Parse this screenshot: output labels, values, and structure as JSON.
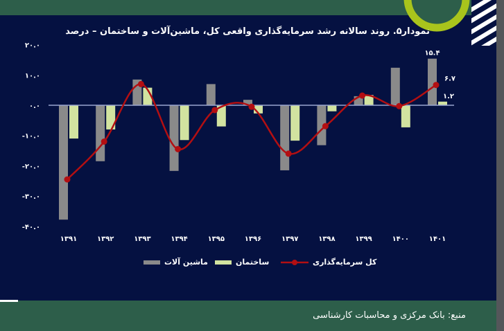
{
  "chart_title": "نمودار۵. روند سالانه رشد سرمایه‌گذاری واقعی کل، ماشین‌آلات و ساختمان – درصد",
  "source_text": "منبع: بانک مرکزی و محاسبات کارشناسی",
  "colors": {
    "background": "#051141",
    "band": "#2d5e4a",
    "machinery": "#8a8a8a",
    "construction": "#d2e3a0",
    "total": "#b30f12",
    "zero_line": "#9aa6d0",
    "accent_ring": "#a9c41c"
  },
  "legend": {
    "total": "کل سرمایه‌گذاری",
    "construction": "ساختمان",
    "machinery": "ماشین آلات"
  },
  "y_ticks": [
    {
      "value": 20,
      "label": "۲۰.۰"
    },
    {
      "value": 10,
      "label": "۱۰.۰"
    },
    {
      "value": 0,
      "label": "۰.۰"
    },
    {
      "value": -10,
      "label": "-۱۰.۰"
    },
    {
      "value": -20,
      "label": "-۲۰.۰"
    },
    {
      "value": -30,
      "label": "-۳۰.۰"
    },
    {
      "value": -40,
      "label": "-۴۰.۰"
    }
  ],
  "annotations": [
    {
      "series": "machinery",
      "category": "۱۴۰۱",
      "label": "۱۵.۴"
    },
    {
      "series": "total",
      "category": "۱۴۰۱",
      "label": "۶.۷"
    },
    {
      "series": "construction",
      "category": "۱۴۰۱",
      "label": "۱.۲"
    }
  ],
  "chart_data": {
    "type": "bar",
    "title": "نمودار۵. روند سالانه رشد سرمایه‌گذاری واقعی کل، ماشین‌آلات و ساختمان – درصد",
    "xlabel": "",
    "ylabel": "درصد",
    "ylim": [
      -40,
      20
    ],
    "grid": false,
    "legend_position": "bottom",
    "categories": [
      "۱۳۹۱",
      "۱۳۹۲",
      "۱۳۹۳",
      "۱۳۹۴",
      "۱۳۹۵",
      "۱۳۹۶",
      "۱۳۹۷",
      "۱۳۹۸",
      "۱۳۹۹",
      "۱۴۰۰",
      "۱۴۰۱"
    ],
    "series": [
      {
        "name": "ماشین آلات",
        "type": "bar",
        "values": [
          -37.8,
          -18.5,
          8.5,
          -21.7,
          7.0,
          1.8,
          -21.5,
          -13.2,
          3.0,
          12.4,
          15.4
        ]
      },
      {
        "name": "ساختمان",
        "type": "bar",
        "values": [
          -11.0,
          -8.0,
          5.8,
          -11.5,
          -7.0,
          -2.7,
          -11.7,
          -2.0,
          3.4,
          -7.3,
          1.2
        ]
      },
      {
        "name": "کل سرمایه‌گذاری",
        "type": "line",
        "values": [
          -24.5,
          -12.0,
          7.0,
          -14.5,
          -1.6,
          -0.5,
          -16.0,
          -6.9,
          3.2,
          -0.3,
          6.7
        ]
      }
    ]
  }
}
